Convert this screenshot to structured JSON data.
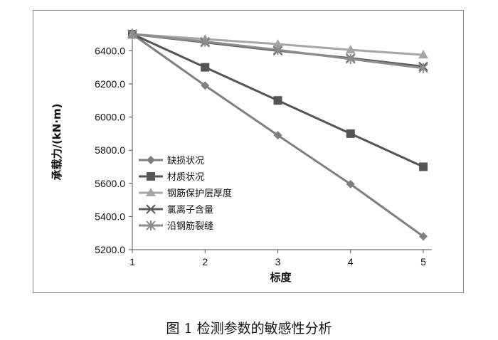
{
  "caption": "图 1  检测参数的敏感性分析",
  "chart_data": {
    "type": "line",
    "xlabel": "标度",
    "ylabel": "承载力/(kN·m)",
    "x": [
      1,
      2,
      3,
      4,
      5
    ],
    "xlim": [
      1,
      5
    ],
    "ylim": [
      5200,
      6500
    ],
    "yticks": [
      "5200.0",
      "5400.0",
      "5600.0",
      "5800.0",
      "6000.0",
      "6200.0",
      "6400.0"
    ],
    "xticks": [
      "1",
      "2",
      "3",
      "4",
      "5"
    ],
    "grid": false,
    "legend_position": "left-inside",
    "series": [
      {
        "name": "缺损状况",
        "values": [
          6500,
          6190,
          5890,
          5595,
          5280
        ],
        "marker": "diamond",
        "color": "#7f7f7f"
      },
      {
        "name": "材质状况",
        "values": [
          6500,
          6300,
          6100,
          5900,
          5700
        ],
        "marker": "square",
        "color": "#555555"
      },
      {
        "name": "钢筋保护层厚度",
        "values": [
          6500,
          6470,
          6440,
          6405,
          6375
        ],
        "marker": "triangle",
        "color": "#a6a6a6"
      },
      {
        "name": "氯离子含量",
        "values": [
          6500,
          6450,
          6400,
          6355,
          6305
        ],
        "marker": "x",
        "color": "#5c5c5c"
      },
      {
        "name": "沿钢筋裂缝",
        "values": [
          6500,
          6455,
          6405,
          6350,
          6295
        ],
        "marker": "star",
        "color": "#8c8c8c"
      }
    ]
  }
}
